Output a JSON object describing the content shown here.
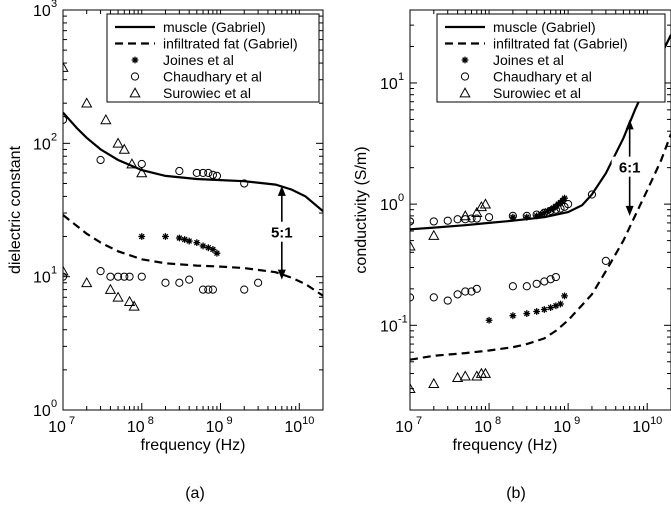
{
  "chart_data": [
    {
      "type": "line",
      "panel_label": "(a)",
      "xlabel": "frequency (Hz)",
      "ylabel": "dielectric constant",
      "xscale": "log",
      "yscale": "log",
      "xlim": [
        10000000.0,
        20000000000.0
      ],
      "ylim": [
        1,
        1000
      ],
      "x_ticks": [
        {
          "base": "10",
          "exp": "7"
        },
        {
          "base": "10",
          "exp": "8"
        },
        {
          "base": "10",
          "exp": "9"
        },
        {
          "base": "10",
          "exp": "10"
        }
      ],
      "y_ticks": [
        {
          "base": "10",
          "exp": "0"
        },
        {
          "base": "10",
          "exp": "1"
        },
        {
          "base": "10",
          "exp": "2"
        },
        {
          "base": "10",
          "exp": "3"
        }
      ],
      "legend_position": "top-right",
      "series": [
        {
          "name": "muscle (Gabriel)",
          "style": "solid",
          "x": [
            10000000.0,
            15000000.0,
            20000000.0,
            30000000.0,
            50000000.0,
            100000000.0,
            200000000.0,
            500000000.0,
            1000000000.0,
            2000000000.0,
            5000000000.0,
            8000000000.0,
            12000000000.0,
            20000000000.0
          ],
          "y": [
            170,
            130,
            110,
            90,
            75,
            63,
            57,
            54,
            53,
            52,
            49,
            45,
            40,
            31
          ]
        },
        {
          "name": "infiltrated fat (Gabriel)",
          "style": "dashed",
          "x": [
            10000000.0,
            15000000.0,
            20000000.0,
            30000000.0,
            50000000.0,
            100000000.0,
            200000000.0,
            500000000.0,
            1000000000.0,
            2000000000.0,
            5000000000.0,
            8000000000.0,
            12000000000.0,
            20000000000.0
          ],
          "y": [
            29,
            24,
            21,
            18,
            15.5,
            13.5,
            12.6,
            12.1,
            11.9,
            11.6,
            10.8,
            9.8,
            8.8,
            7.2
          ]
        },
        {
          "name": "Joines et al",
          "marker": "asterisk",
          "x": [
            100000000.0,
            200000000.0,
            300000000.0,
            350000000.0,
            400000000.0,
            500000000.0,
            600000000.0,
            700000000.0,
            800000000.0,
            900000000.0
          ],
          "y": [
            20,
            20,
            19.5,
            19,
            18.5,
            18,
            17,
            16.5,
            16,
            15
          ]
        },
        {
          "name": "Chaudhary et al",
          "marker": "circle",
          "x": [
            10000000.0,
            30000000.0,
            100000000.0,
            300000000.0,
            500000000.0,
            600000000.0,
            700000000.0,
            800000000.0,
            900000000.0,
            2000000000.0,
            10000000.0,
            30000000.0,
            40000000.0,
            50000000.0,
            60000000.0,
            70000000.0,
            100000000.0,
            200000000.0,
            300000000.0,
            400000000.0,
            600000000.0,
            700000000.0,
            800000000.0,
            2000000000.0,
            3000000000.0
          ],
          "y": [
            150,
            75,
            70,
            62,
            60,
            60,
            60,
            58,
            57,
            50,
            10,
            11,
            10,
            10,
            10,
            10,
            10,
            9,
            9,
            9.5,
            8,
            8,
            8,
            8,
            9
          ]
        },
        {
          "name": "Surowiec et al",
          "marker": "triangle",
          "x": [
            10000000.0,
            20000000.0,
            35000000.0,
            50000000.0,
            60000000.0,
            75000000.0,
            100000000.0,
            10000000.0,
            20000000.0,
            40000000.0,
            50000000.0,
            70000000.0,
            80000000.0
          ],
          "y": [
            370,
            200,
            150,
            100,
            90,
            70,
            60,
            11,
            9,
            8,
            7,
            6.5,
            6
          ]
        }
      ],
      "annotations": [
        {
          "text": "5:1",
          "x": 6000000000.0,
          "y_from": 48,
          "y_to": 9.5
        }
      ]
    },
    {
      "type": "line",
      "panel_label": "(b)",
      "xlabel": "frequency (Hz)",
      "ylabel": "conductivity (S/m)",
      "xscale": "log",
      "yscale": "log",
      "xlim": [
        10000000.0,
        20000000000.0
      ],
      "ylim": [
        0.02,
        40
      ],
      "x_ticks": [
        {
          "base": "10",
          "exp": "7"
        },
        {
          "base": "10",
          "exp": "8"
        },
        {
          "base": "10",
          "exp": "9"
        },
        {
          "base": "10",
          "exp": "10"
        }
      ],
      "y_ticks": [
        {
          "base": "10",
          "exp": "-1"
        },
        {
          "base": "10",
          "exp": "0"
        },
        {
          "base": "10",
          "exp": "1"
        }
      ],
      "legend_position": "top-right",
      "series": [
        {
          "name": "muscle (Gabriel)",
          "style": "solid",
          "x": [
            10000000.0,
            20000000.0,
            50000000.0,
            100000000.0,
            200000000.0,
            500000000.0,
            1000000000.0,
            1500000000.0,
            2000000000.0,
            3000000000.0,
            5000000000.0,
            7000000000.0,
            10000000000.0,
            15000000000.0,
            20000000000.0
          ],
          "y": [
            0.62,
            0.64,
            0.67,
            0.7,
            0.73,
            0.78,
            0.86,
            0.98,
            1.2,
            1.8,
            3.5,
            6,
            10,
            17,
            25
          ]
        },
        {
          "name": "infiltrated fat (Gabriel)",
          "style": "dashed",
          "x": [
            10000000.0,
            20000000.0,
            50000000.0,
            100000000.0,
            200000000.0,
            300000000.0,
            500000000.0,
            700000000.0,
            1000000000.0,
            2000000000.0,
            3000000000.0,
            5000000000.0,
            7000000000.0,
            10000000000.0,
            15000000000.0,
            20000000000.0
          ],
          "y": [
            0.052,
            0.056,
            0.059,
            0.062,
            0.066,
            0.07,
            0.078,
            0.09,
            0.11,
            0.18,
            0.28,
            0.5,
            0.8,
            1.3,
            2.3,
            3.8
          ]
        },
        {
          "name": "Joines et al",
          "marker": "asterisk",
          "x": [
            200000000.0,
            300000000.0,
            400000000.0,
            450000000.0,
            500000000.0,
            550000000.0,
            600000000.0,
            650000000.0,
            700000000.0,
            750000000.0,
            800000000.0,
            850000000.0,
            900000000.0,
            100000000.0,
            200000000.0,
            300000000.0,
            400000000.0,
            500000000.0,
            600000000.0,
            700000000.0,
            800000000.0,
            900000000.0
          ],
          "y": [
            0.78,
            0.78,
            0.8,
            0.82,
            0.85,
            0.88,
            0.9,
            0.93,
            0.96,
            1.0,
            1.03,
            1.07,
            1.12,
            0.11,
            0.12,
            0.125,
            0.13,
            0.135,
            0.14,
            0.145,
            0.15,
            0.175
          ]
        },
        {
          "name": "Chaudhary et al",
          "marker": "circle",
          "x": [
            10000000.0,
            20000000.0,
            30000000.0,
            40000000.0,
            50000000.0,
            60000000.0,
            70000000.0,
            100000000.0,
            200000000.0,
            300000000.0,
            400000000.0,
            500000000.0,
            600000000.0,
            700000000.0,
            800000000.0,
            900000000.0,
            1000000000.0,
            2000000000.0,
            10000000.0,
            20000000.0,
            30000000.0,
            40000000.0,
            50000000.0,
            60000000.0,
            70000000.0,
            200000000.0,
            300000000.0,
            400000000.0,
            500000000.0,
            600000000.0,
            700000000.0,
            3000000000.0
          ],
          "y": [
            0.72,
            0.72,
            0.73,
            0.75,
            0.75,
            0.76,
            0.76,
            0.78,
            0.8,
            0.8,
            0.82,
            0.85,
            0.88,
            0.9,
            0.92,
            0.95,
            1.0,
            1.2,
            0.17,
            0.17,
            0.16,
            0.18,
            0.19,
            0.19,
            0.2,
            0.21,
            0.21,
            0.22,
            0.23,
            0.24,
            0.25,
            0.34
          ]
        },
        {
          "name": "Surowiec et al",
          "marker": "triangle",
          "x": [
            10000000.0,
            20000000.0,
            50000000.0,
            70000000.0,
            80000000.0,
            90000000.0,
            10000000.0,
            20000000.0,
            40000000.0,
            50000000.0,
            70000000.0,
            80000000.0,
            90000000.0
          ],
          "y": [
            0.45,
            0.55,
            0.8,
            0.85,
            0.95,
            1.0,
            0.03,
            0.033,
            0.037,
            0.038,
            0.038,
            0.04,
            0.04
          ]
        }
      ],
      "annotations": [
        {
          "text": "6:1",
          "x": 6000000000.0,
          "y_from": 5,
          "y_to": 0.8
        }
      ]
    }
  ]
}
